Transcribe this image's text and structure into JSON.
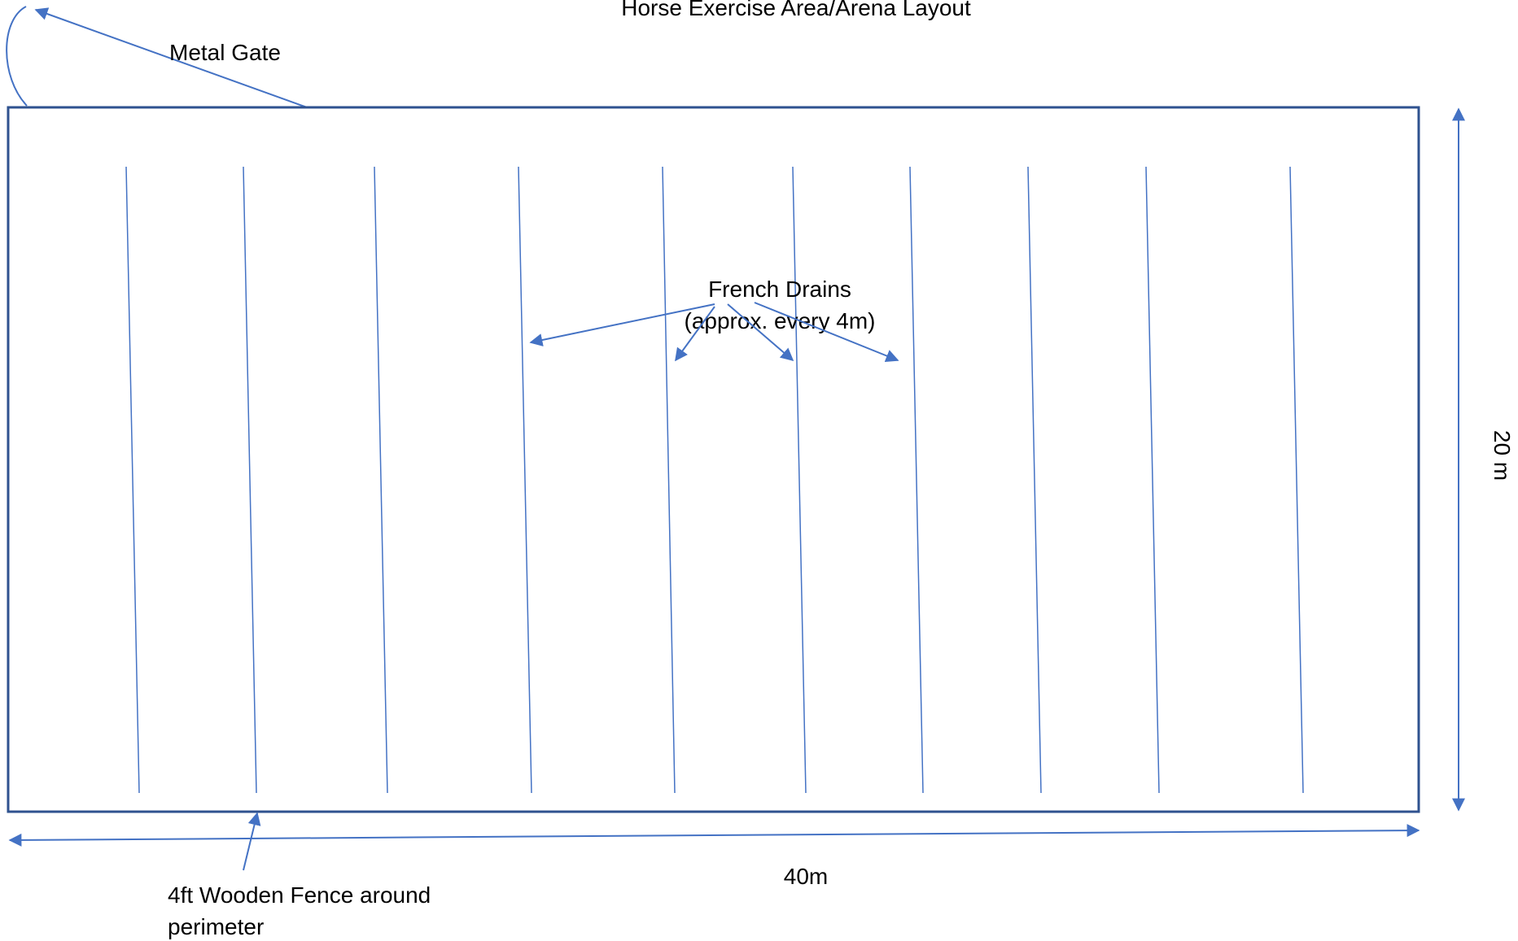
{
  "title": "Horse Exercise Area/Arena Layout",
  "gate_label": "Metal Gate",
  "drains_label": {
    "line1": "French Drains",
    "line2": "(approx. every 4m)"
  },
  "fence_label": {
    "line1": "4ft Wooden Fence around",
    "line2": "perimeter"
  },
  "width_label": "40m",
  "height_label": "20 m",
  "drain_count": 10,
  "colors": {
    "line": "#4472C4",
    "border": "#2F528F",
    "text": "#000000"
  }
}
